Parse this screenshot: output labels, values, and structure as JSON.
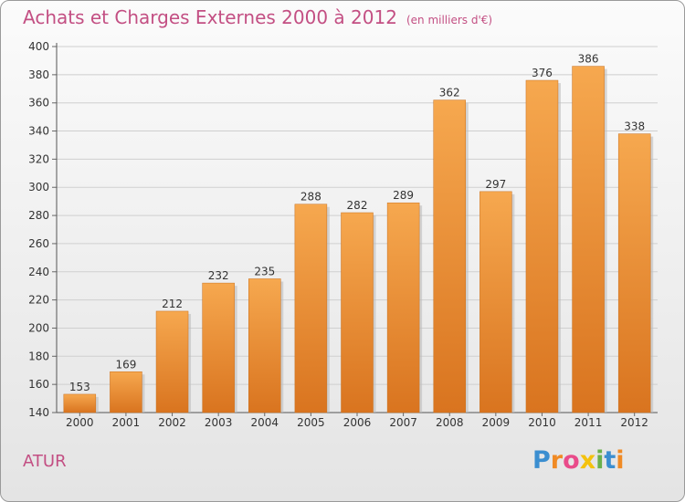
{
  "title": "Achats et Charges Externes 2000 à 2012",
  "subtitle": "(en milliers d'€)",
  "commune": "ATUR",
  "logo": "Proxiti",
  "colors": {
    "title": "#c34f83",
    "bar_top": "#f6a84f",
    "bar_bottom": "#d9741f",
    "grid": "#cfcfcf"
  },
  "chart_data": {
    "type": "bar",
    "categories": [
      "2000",
      "2001",
      "2002",
      "2003",
      "2004",
      "2005",
      "2006",
      "2007",
      "2008",
      "2009",
      "2010",
      "2011",
      "2012"
    ],
    "values": [
      153,
      169,
      212,
      232,
      235,
      288,
      282,
      289,
      362,
      297,
      376,
      386,
      338
    ],
    "title": "Achats et Charges Externes 2000 à 2012",
    "ylim": [
      140,
      400
    ],
    "yticks": [
      140,
      160,
      180,
      200,
      220,
      240,
      260,
      280,
      300,
      320,
      340,
      360,
      380,
      400
    ],
    "grid": true,
    "data_labels": true
  }
}
